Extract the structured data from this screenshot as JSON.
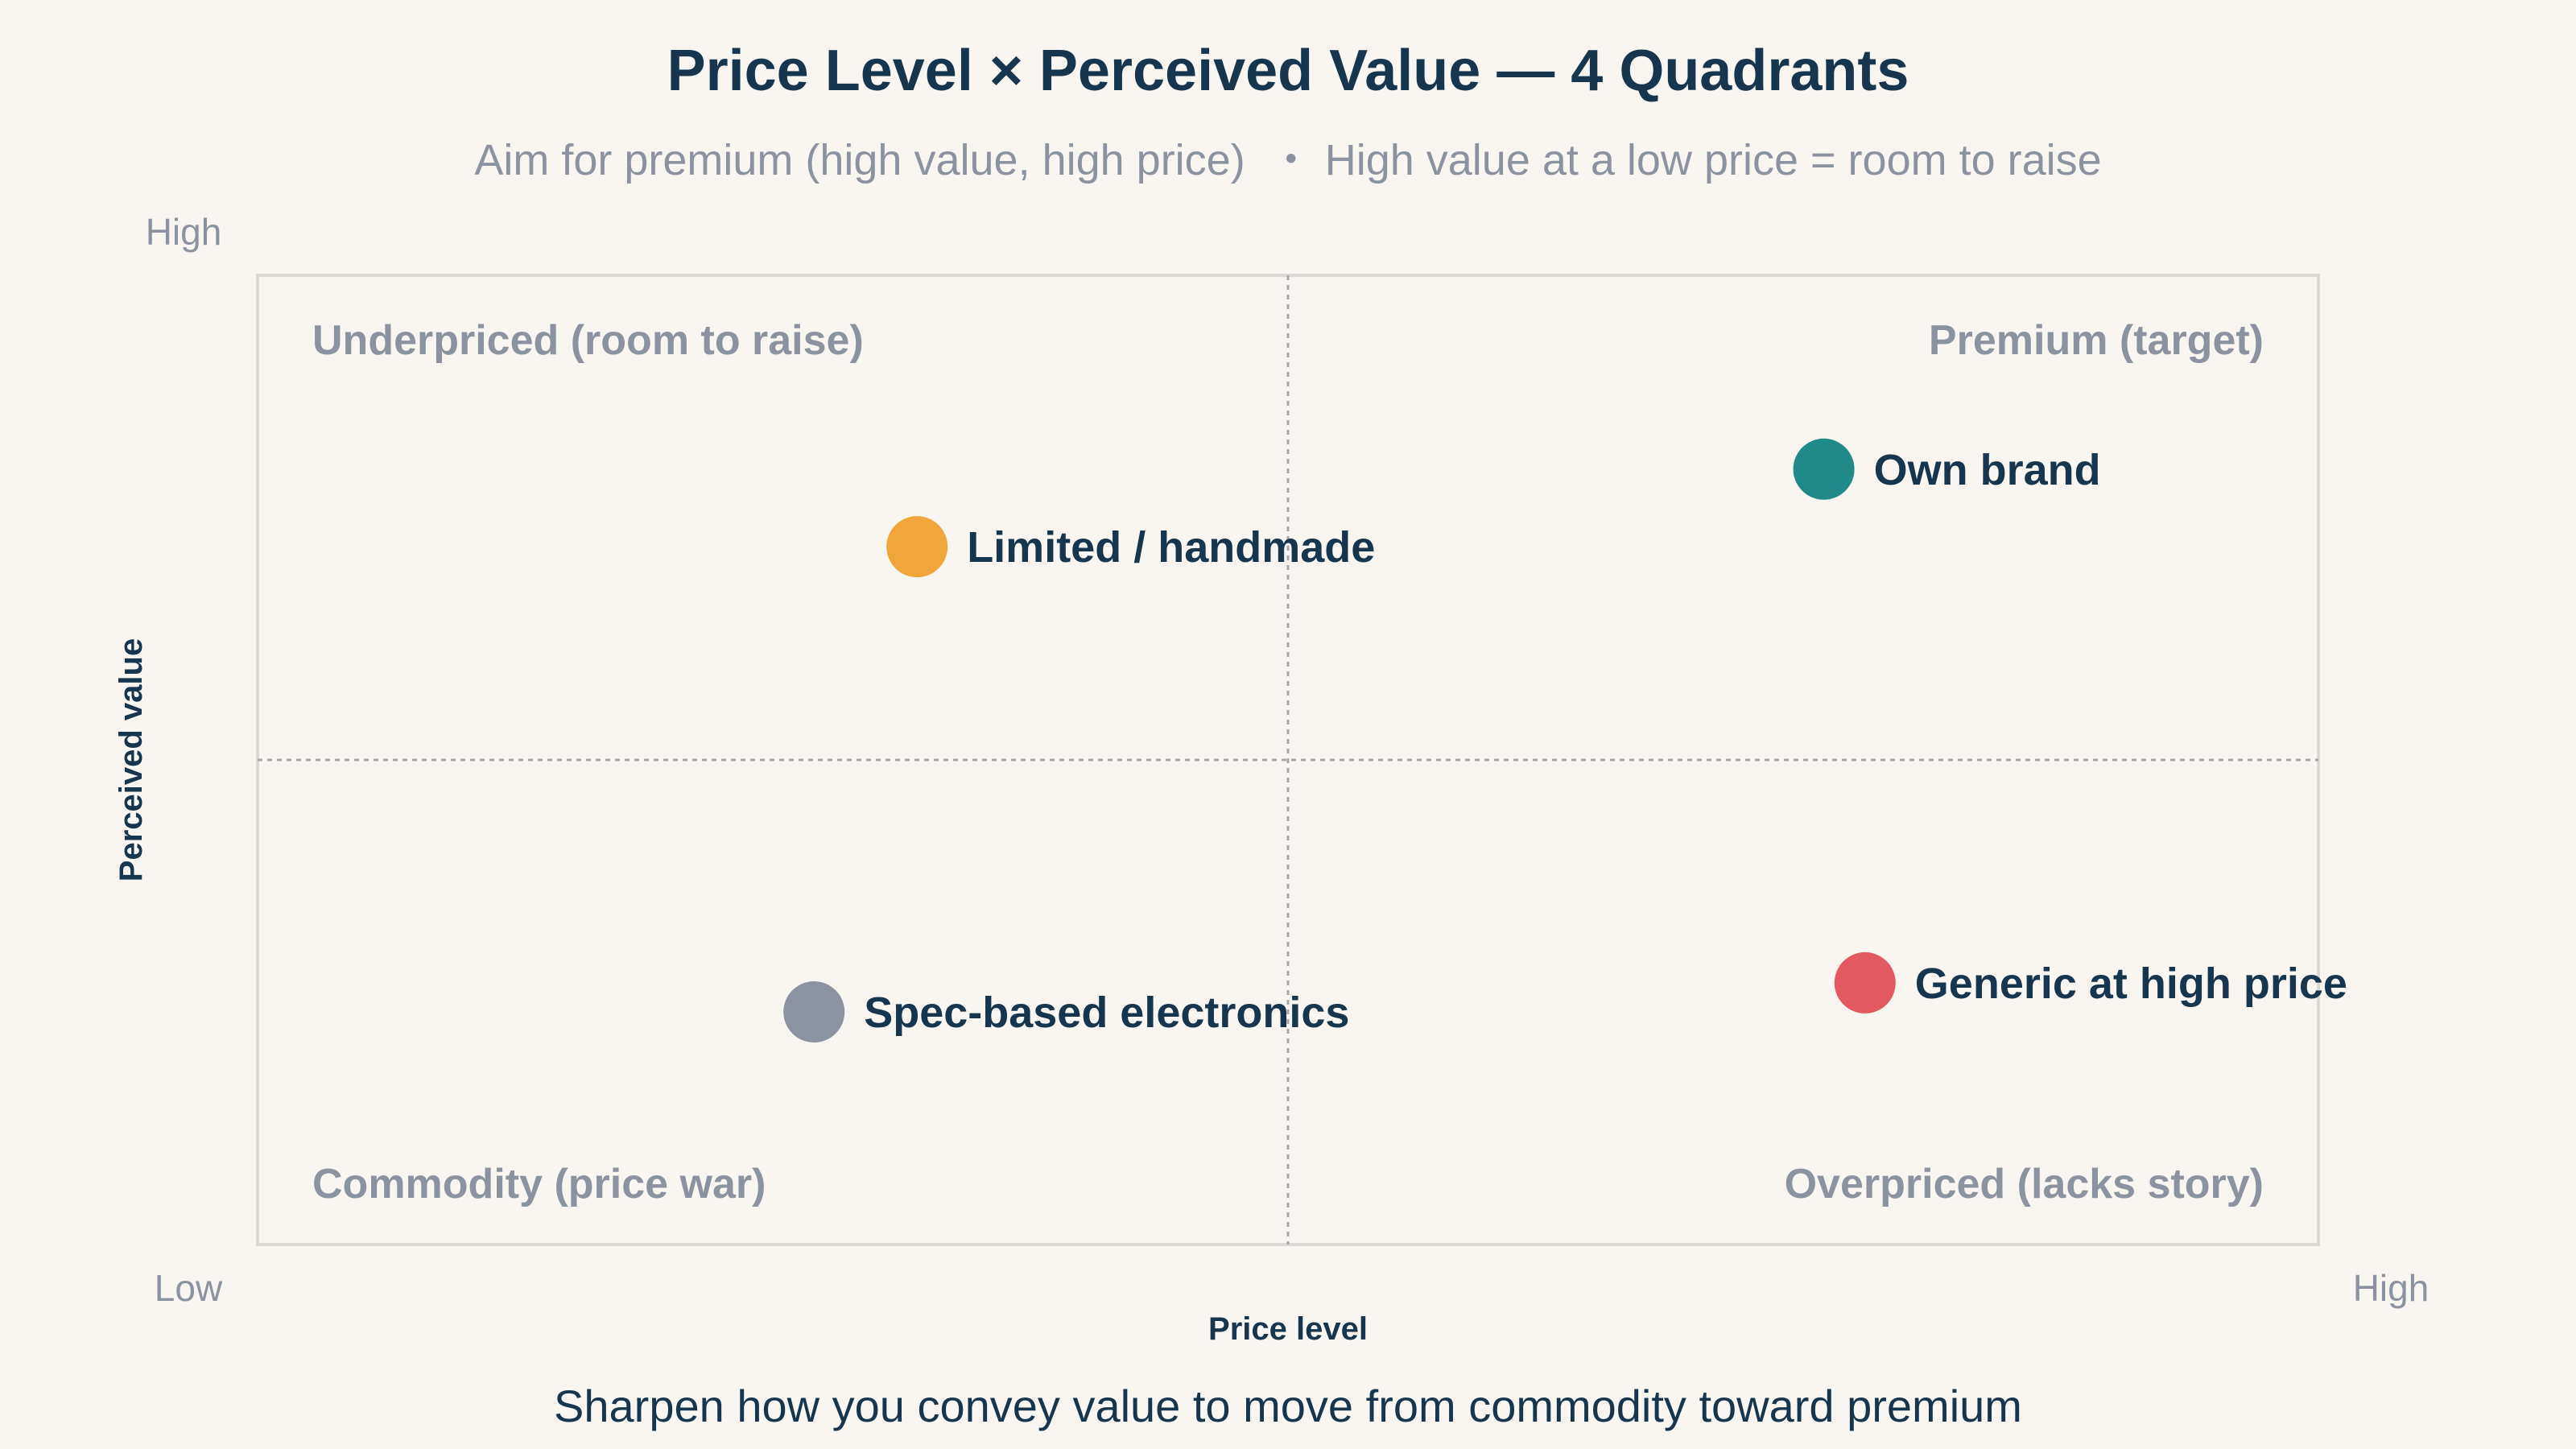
{
  "chart_data": {
    "type": "scatter",
    "title": "Price Level × Perceived Value — 4 Quadrants",
    "subtitle": "Aim for premium (high value, high price)  ・ High value at a low price = room to raise",
    "xlabel": "Price level",
    "ylabel": "Perceived value",
    "x_tick_labels": {
      "low": "Low",
      "high": "High"
    },
    "y_tick_labels": {
      "high": "High"
    },
    "xlim": [
      0,
      10
    ],
    "ylim": [
      0,
      10
    ],
    "grid": false,
    "quadrant_divider": {
      "x": 5,
      "y": 5
    },
    "quadrant_labels": {
      "top_left": "Underpriced (room to raise)",
      "top_right": "Premium (target)",
      "bottom_left": "Commodity (price war)",
      "bottom_right": "Overpriced (lacks story)"
    },
    "points": [
      {
        "label": "Own brand",
        "x": 7.6,
        "y": 8.0,
        "color": "#1f8a87"
      },
      {
        "label": "Limited / handmade",
        "x": 3.2,
        "y": 7.2,
        "color": "#f0a63a"
      },
      {
        "label": "Generic at high price",
        "x": 7.8,
        "y": 2.7,
        "color": "#e25a5f"
      },
      {
        "label": "Spec-based electronics",
        "x": 2.7,
        "y": 2.4,
        "color": "#8c93a0"
      }
    ],
    "caption": "Sharpen how you convey value to move from commodity toward premium"
  },
  "colors": {
    "background": "#f9f6f2",
    "title": "#17364d",
    "muted": "#8c93a0",
    "frame": "#dcd8d3",
    "divider": "#a9a9a9"
  }
}
